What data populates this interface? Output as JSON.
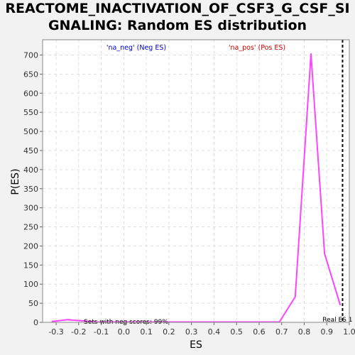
{
  "chart_data": {
    "type": "line",
    "title_lines": [
      "REACTOME_INACTIVATION_OF_CSF3_G_CSF_SI",
      "GNALING: Random ES distribution"
    ],
    "xlabel": "ES",
    "ylabel": "P(ES)",
    "xlim": [
      -0.36,
      1.0
    ],
    "ylim": [
      0,
      740
    ],
    "x_ticks": [
      -0.3,
      -0.2,
      -0.1,
      0.0,
      0.1,
      0.2,
      0.3,
      0.4,
      0.5,
      0.6,
      0.7,
      0.8,
      0.9,
      1.0
    ],
    "x_tick_labels": [
      "-0.3",
      "-0.2",
      "-0.1",
      "0.0",
      "0.1",
      "0.2",
      "0.3",
      "0.4",
      "0.5",
      "0.6",
      "0.7",
      "0.8",
      "0.9",
      "1.0"
    ],
    "y_ticks": [
      0,
      50,
      100,
      150,
      200,
      250,
      300,
      350,
      400,
      450,
      500,
      550,
      600,
      650,
      700
    ],
    "y_tick_labels": [
      "0",
      "50",
      "100",
      "150",
      "200",
      "250",
      "300",
      "350",
      "400",
      "450",
      "500",
      "550",
      "600",
      "650",
      "700"
    ],
    "grid": true,
    "series": [
      {
        "name": "Random ES distribution",
        "color": "#ff44ff",
        "x": [
          -0.32,
          -0.25,
          -0.19,
          -0.12,
          0.0,
          0.2,
          0.4,
          0.6,
          0.69,
          0.76,
          0.83,
          0.89,
          0.96
        ],
        "y": [
          2,
          7,
          4,
          1,
          1,
          1,
          1,
          1,
          1,
          67,
          703,
          180,
          45
        ]
      }
    ],
    "real_es": {
      "x": 0.97,
      "label": "Real ES 1",
      "color": "#000000"
    },
    "annotations": {
      "neg": {
        "text": "'na_neg' (Neg ES)",
        "color": "#0000cc"
      },
      "pos": {
        "text": "'na_pos' (Pos ES)",
        "color": "#cc0000"
      },
      "sets": {
        "text": "Sets with neg scores: 99%",
        "color": "#000000"
      }
    }
  }
}
